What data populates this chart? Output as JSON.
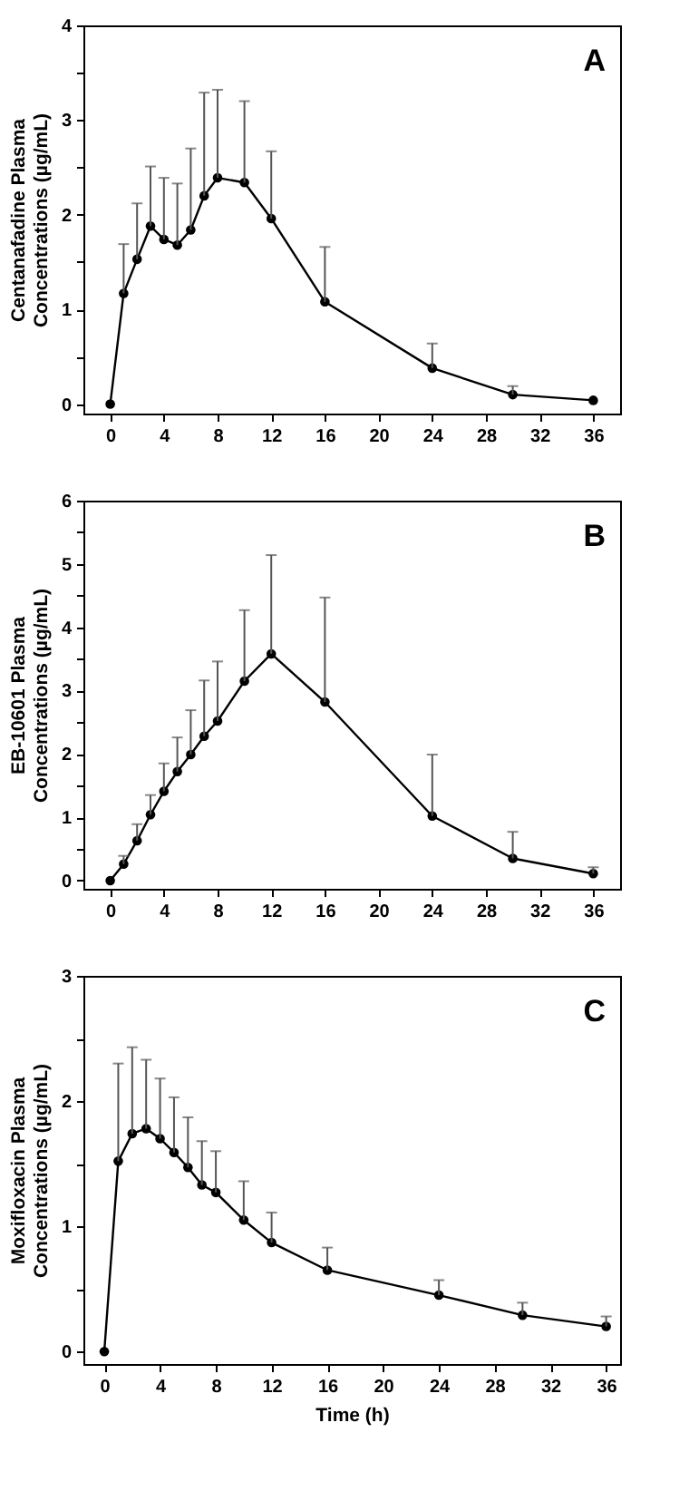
{
  "chart_data": [
    {
      "type": "line",
      "ylabel": "Centanafadine Plasma Concentrations (µg/mL)",
      "annotations": [
        "A"
      ],
      "x": [
        0,
        1,
        2,
        3,
        4,
        5,
        6,
        7,
        8,
        10,
        12,
        16,
        24,
        30,
        36
      ],
      "series": [
        {
          "color": "#000000",
          "values": [
            0,
            1.17,
            1.53,
            1.88,
            1.74,
            1.68,
            1.84,
            2.2,
            2.39,
            2.34,
            1.96,
            1.08,
            0.38,
            0.1,
            0.04
          ],
          "errors": [
            null,
            [
              1.17,
              1.69
            ],
            [
              1.53,
              2.12
            ],
            [
              1.88,
              2.51
            ],
            [
              1.74,
              2.39
            ],
            [
              1.68,
              2.33
            ],
            [
              1.84,
              2.7
            ],
            [
              2.2,
              3.29
            ],
            [
              2.39,
              3.32
            ],
            [
              2.34,
              3.2
            ],
            [
              1.96,
              2.67
            ],
            [
              1.08,
              1.66
            ],
            [
              0.38,
              0.64
            ],
            [
              0.1,
              0.19
            ],
            null
          ]
        }
      ],
      "xlim": [
        -2,
        38
      ],
      "xticks": [
        0,
        4,
        8,
        12,
        16,
        20,
        24,
        28,
        32,
        36
      ],
      "ylim": [
        -0.1,
        4
      ],
      "yticks": [
        0,
        {
          "value": 0.5,
          "label": null
        },
        1,
        {
          "value": 1.5,
          "label": null
        },
        2,
        {
          "value": 2.5,
          "label": null
        },
        3,
        {
          "value": 3.5,
          "label": null
        },
        4
      ],
      "grid": false,
      "legend": false,
      "marker": "circle",
      "line_style": "solid"
    },
    {
      "type": "line",
      "ylabel": "EB-10601 Plasma Concentrations (µg/mL)",
      "annotations": [
        "B"
      ],
      "x": [
        0,
        1,
        2,
        3,
        4,
        5,
        6,
        7,
        8,
        10,
        12,
        16,
        24,
        30,
        36
      ],
      "series": [
        {
          "color": "#000000",
          "values": [
            0,
            0.26,
            0.63,
            1.04,
            1.41,
            1.72,
            1.99,
            2.28,
            2.52,
            3.15,
            3.58,
            2.82,
            1.02,
            0.35,
            0.11
          ],
          "errors": [
            null,
            [
              0.26,
              0.39
            ],
            [
              0.63,
              0.89
            ],
            [
              1.04,
              1.35
            ],
            [
              1.41,
              1.85
            ],
            [
              1.72,
              2.26
            ],
            [
              1.99,
              2.69
            ],
            [
              2.28,
              3.16
            ],
            [
              2.52,
              3.46
            ],
            [
              3.15,
              4.27
            ],
            [
              3.58,
              5.14
            ],
            [
              2.82,
              4.47
            ],
            [
              1.02,
              1.99
            ],
            [
              0.35,
              0.77
            ],
            [
              0.11,
              0.21
            ]
          ]
        }
      ],
      "xlim": [
        -2,
        38
      ],
      "xticks": [
        0,
        4,
        8,
        12,
        16,
        20,
        24,
        28,
        32,
        36
      ],
      "ylim": [
        -0.13,
        6
      ],
      "yticks": [
        0,
        {
          "value": 0.5,
          "label": null
        },
        1,
        {
          "value": 1.5,
          "label": null
        },
        2,
        {
          "value": 2.5,
          "label": null
        },
        3,
        {
          "value": 3.5,
          "label": null
        },
        4,
        {
          "value": 4.5,
          "label": null
        },
        5,
        {
          "value": 5.5,
          "label": null
        },
        6
      ],
      "grid": false,
      "legend": false,
      "marker": "circle",
      "line_style": "solid"
    },
    {
      "type": "line",
      "xlabel": "Time (h)",
      "ylabel": "Moxifloxacin Plasma Concentrations (µg/mL)",
      "annotations": [
        "C"
      ],
      "x": [
        0,
        1,
        2,
        3,
        4,
        5,
        6,
        7,
        8,
        10,
        12,
        16,
        24,
        30,
        36
      ],
      "series": [
        {
          "color": "#000000",
          "values": [
            0,
            1.52,
            1.74,
            1.78,
            1.7,
            1.59,
            1.47,
            1.33,
            1.27,
            1.05,
            0.87,
            0.65,
            0.45,
            0.29,
            0.2
          ],
          "errors": [
            null,
            [
              1.52,
              2.3
            ],
            [
              1.74,
              2.43
            ],
            [
              1.78,
              2.33
            ],
            [
              1.7,
              2.18
            ],
            [
              1.59,
              2.03
            ],
            [
              1.47,
              1.87
            ],
            [
              1.33,
              1.68
            ],
            [
              1.27,
              1.6
            ],
            [
              1.05,
              1.36
            ],
            [
              0.87,
              1.11
            ],
            [
              0.65,
              0.83
            ],
            [
              0.45,
              0.57
            ],
            [
              0.29,
              0.39
            ],
            [
              0.2,
              0.28
            ]
          ]
        }
      ],
      "xlim": [
        -1.5,
        37
      ],
      "xticks": [
        0,
        4,
        8,
        12,
        16,
        20,
        24,
        28,
        32,
        36
      ],
      "ylim": [
        -0.1,
        3
      ],
      "yticks": [
        0,
        {
          "value": 0.5,
          "label": null
        },
        1,
        {
          "value": 1.5,
          "label": null
        },
        2,
        {
          "value": 2.5,
          "label": null
        },
        3
      ],
      "grid": false,
      "legend": false,
      "marker": "circle",
      "line_style": "solid"
    }
  ]
}
